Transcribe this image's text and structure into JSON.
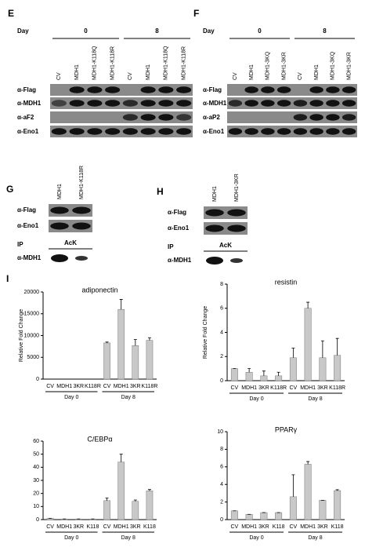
{
  "panels": {
    "E": {
      "label": "E",
      "day_label": "Day",
      "days": [
        "0",
        "8"
      ],
      "lanes": [
        "CV",
        "MDH1",
        "MDH1-K118Q",
        "MDH1-K118R",
        "CV",
        "MDH1",
        "MDH1-K118Q",
        "MDH1-K118R"
      ],
      "rows": [
        "α-Flag",
        "α-MDH1",
        "α-aF2",
        "α-Eno1"
      ]
    },
    "F": {
      "label": "F",
      "day_label": "Day",
      "days": [
        "0",
        "8"
      ],
      "lanes": [
        "CV",
        "MDH1",
        "MDH1-3KQ",
        "MDH1-3KR",
        "CV",
        "MDH1",
        "MDH1-3KQ",
        "MDH1-3KR"
      ],
      "rows": [
        "α-Flag",
        "α-MDH1",
        "α-aP2",
        "α-Eno1"
      ]
    },
    "G": {
      "label": "G",
      "lanes": [
        "MDH1",
        "MDH1-K118R"
      ],
      "rows": [
        "α-Flag",
        "α-Eno1"
      ],
      "ip_label": "IP",
      "ip_antibody": "AcK",
      "ip_row": "α-MDH1"
    },
    "H": {
      "label": "H",
      "lanes": [
        "MDH1",
        "MDH1-3KR"
      ],
      "rows": [
        "α-Flag",
        "α-Eno1"
      ],
      "ip_label": "IP",
      "ip_antibody": "AcK",
      "ip_row": "α-MDH1"
    },
    "I": {
      "label": "I"
    }
  },
  "chart_data": [
    {
      "type": "bar",
      "title": "adiponectin",
      "y_label": "Relative Fold Change",
      "categories": [
        "CV",
        "MDH1",
        "3KR",
        "K118R",
        "CV",
        "MDH1",
        "3KR",
        "K118R"
      ],
      "groups": [
        "Day 0",
        "Day 8"
      ],
      "values": [
        0,
        0,
        0,
        0,
        8300,
        16000,
        7700,
        8900
      ],
      "errors": [
        0,
        0,
        0,
        0,
        200,
        2300,
        1400,
        600
      ],
      "ylim": [
        0,
        20000
      ],
      "yticks": [
        0,
        5000,
        10000,
        15000,
        20000
      ],
      "color": "#c8c8c8"
    },
    {
      "type": "bar",
      "title": "resistin",
      "y_label": "Relative Fold Change",
      "categories": [
        "CV",
        "MDH1",
        "3KR",
        "K118R",
        "CV",
        "MDH1",
        "3KR",
        "K118R"
      ],
      "groups": [
        "Day 0",
        "Day 8"
      ],
      "values": [
        1,
        0.7,
        0.4,
        0.4,
        1.9,
        6,
        1.9,
        2.1
      ],
      "errors": [
        0,
        0.3,
        0.4,
        0.3,
        0.8,
        0.5,
        1.4,
        1.4
      ],
      "ylim": [
        0,
        8
      ],
      "yticks": [
        0,
        2,
        4,
        6,
        8
      ],
      "color": "#c8c8c8"
    },
    {
      "type": "bar",
      "title": "C/EBPα",
      "categories": [
        "CV",
        "MDH1",
        "3KR",
        "K118",
        "CV",
        "MDH1",
        "3KR",
        "K118"
      ],
      "groups": [
        "Day 0",
        "Day 8"
      ],
      "values": [
        1,
        0.5,
        0.5,
        0.5,
        14.5,
        44,
        14,
        22
      ],
      "errors": [
        0,
        0,
        0,
        0,
        2,
        6,
        1,
        1
      ],
      "ylim": [
        0,
        60
      ],
      "yticks": [
        0,
        10,
        20,
        30,
        40,
        50,
        60
      ],
      "color": "#c8c8c8"
    },
    {
      "type": "bar",
      "title": "PPARγ",
      "categories": [
        "CV",
        "MDH1",
        "3KR",
        "K118",
        "CV",
        "MDH1",
        "3KR",
        "K118"
      ],
      "groups": [
        "Day 0",
        "Day 8"
      ],
      "values": [
        1,
        0.6,
        0.8,
        0.8,
        2.6,
        6.3,
        2.2,
        3.3
      ],
      "errors": [
        0,
        0,
        0,
        0,
        2.5,
        0.3,
        0,
        0.1
      ],
      "ylim": [
        0,
        10
      ],
      "yticks": [
        0,
        2,
        4,
        6,
        8,
        10
      ],
      "color": "#c8c8c8"
    }
  ]
}
